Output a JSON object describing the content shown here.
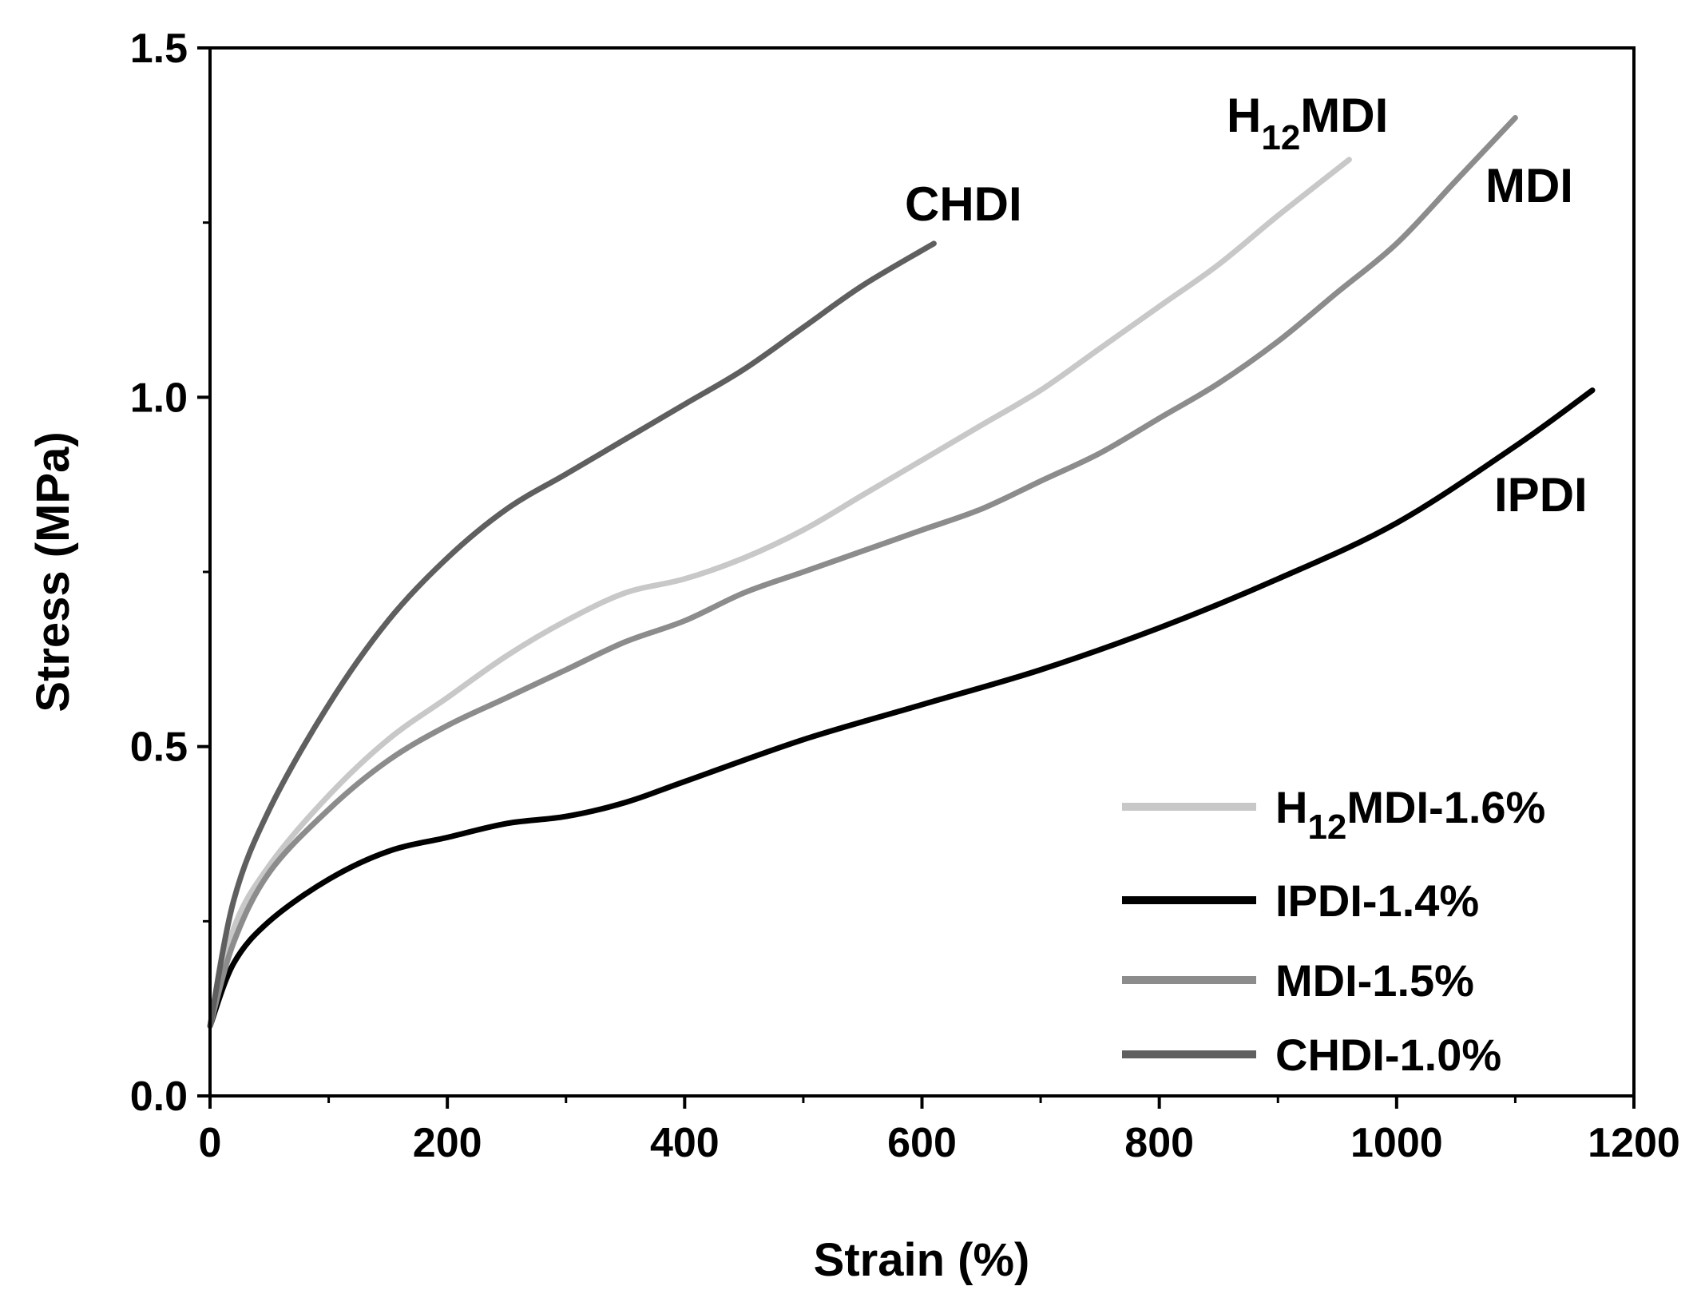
{
  "chart_data": {
    "type": "line",
    "title": "",
    "xlabel": "Strain (%)",
    "ylabel": "Stress (MPa)",
    "xlim": [
      0,
      1200
    ],
    "ylim": [
      0.0,
      1.5
    ],
    "xticks": [
      0,
      200,
      400,
      600,
      800,
      1000,
      1200
    ],
    "xtick_labels": [
      "0",
      "200",
      "400",
      "600",
      "800",
      "1000",
      "1200"
    ],
    "yticks": [
      0.0,
      0.5,
      1.0,
      1.5
    ],
    "ytick_labels": [
      "0.0",
      "0.5",
      "1.0",
      "1.5"
    ],
    "grid": false,
    "legend_position": "bottom-right",
    "series": [
      {
        "name": "H12MDI-1.6%",
        "legend_main": "H",
        "legend_sub": "12",
        "legend_rest": "MDI-1.6%",
        "label_main": "H",
        "label_sub": "12",
        "label_rest": "MDI",
        "color": "#c8c8c8",
        "x": [
          0,
          20,
          50,
          100,
          150,
          200,
          250,
          300,
          350,
          400,
          450,
          500,
          550,
          600,
          650,
          700,
          750,
          800,
          850,
          900,
          960
        ],
        "y": [
          0.1,
          0.24,
          0.33,
          0.43,
          0.51,
          0.57,
          0.63,
          0.68,
          0.72,
          0.74,
          0.77,
          0.81,
          0.86,
          0.91,
          0.96,
          1.01,
          1.07,
          1.13,
          1.19,
          1.26,
          1.34
        ]
      },
      {
        "name": "IPDI-1.4%",
        "legend_main": "IPDI-1.4%",
        "legend_sub": "",
        "legend_rest": "",
        "label_main": "IPDI",
        "label_sub": "",
        "label_rest": "",
        "color": "#000000",
        "x": [
          0,
          20,
          50,
          100,
          150,
          200,
          250,
          300,
          350,
          400,
          500,
          600,
          700,
          800,
          900,
          1000,
          1100,
          1165
        ],
        "y": [
          0.1,
          0.19,
          0.25,
          0.31,
          0.35,
          0.37,
          0.39,
          0.4,
          0.42,
          0.45,
          0.51,
          0.56,
          0.61,
          0.67,
          0.74,
          0.82,
          0.93,
          1.01
        ]
      },
      {
        "name": "MDI-1.5%",
        "legend_main": "MDI-1.5%",
        "legend_sub": "",
        "legend_rest": "",
        "label_main": "MDI",
        "label_sub": "",
        "label_rest": "",
        "color": "#8c8c8c",
        "x": [
          0,
          20,
          50,
          100,
          150,
          200,
          250,
          300,
          350,
          400,
          450,
          500,
          550,
          600,
          650,
          700,
          750,
          800,
          850,
          900,
          950,
          1000,
          1050,
          1100
        ],
        "y": [
          0.1,
          0.22,
          0.32,
          0.41,
          0.48,
          0.53,
          0.57,
          0.61,
          0.65,
          0.68,
          0.72,
          0.75,
          0.78,
          0.81,
          0.84,
          0.88,
          0.92,
          0.97,
          1.02,
          1.08,
          1.15,
          1.22,
          1.31,
          1.4
        ]
      },
      {
        "name": "CHDI-1.0%",
        "legend_main": "CHDI-1.0%",
        "legend_sub": "",
        "legend_rest": "",
        "label_main": "CHDI",
        "label_sub": "",
        "label_rest": "",
        "color": "#5f5f5f",
        "x": [
          0,
          20,
          50,
          100,
          150,
          200,
          250,
          300,
          350,
          400,
          450,
          500,
          550,
          610
        ],
        "y": [
          0.1,
          0.28,
          0.41,
          0.56,
          0.68,
          0.77,
          0.84,
          0.89,
          0.94,
          0.99,
          1.04,
          1.1,
          1.16,
          1.22
        ]
      }
    ]
  }
}
